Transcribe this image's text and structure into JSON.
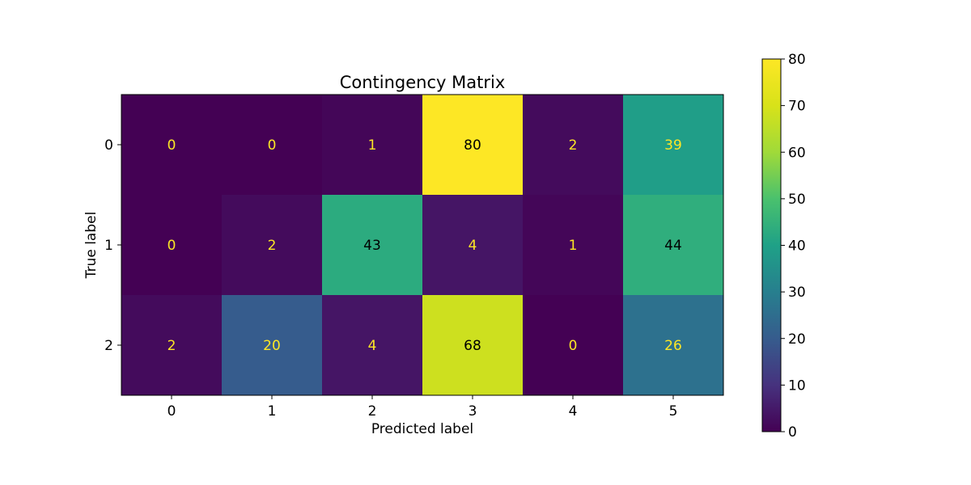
{
  "chart_data": {
    "type": "heatmap",
    "title": "Contingency Matrix",
    "xlabel": "Predicted label",
    "ylabel": "True label",
    "x_categories": [
      "0",
      "1",
      "2",
      "3",
      "4",
      "5"
    ],
    "y_categories": [
      "0",
      "1",
      "2"
    ],
    "values": [
      [
        0,
        0,
        1,
        80,
        2,
        39
      ],
      [
        0,
        2,
        43,
        4,
        1,
        44
      ],
      [
        2,
        20,
        4,
        68,
        0,
        26
      ]
    ],
    "colormap": "viridis",
    "vmin": 0,
    "vmax": 80,
    "colorbar_ticks": [
      0,
      10,
      20,
      30,
      40,
      50,
      60,
      70,
      80
    ],
    "grid": false,
    "colors": {
      "label_on_dark": "#fde725",
      "label_on_light": "#000000"
    }
  }
}
